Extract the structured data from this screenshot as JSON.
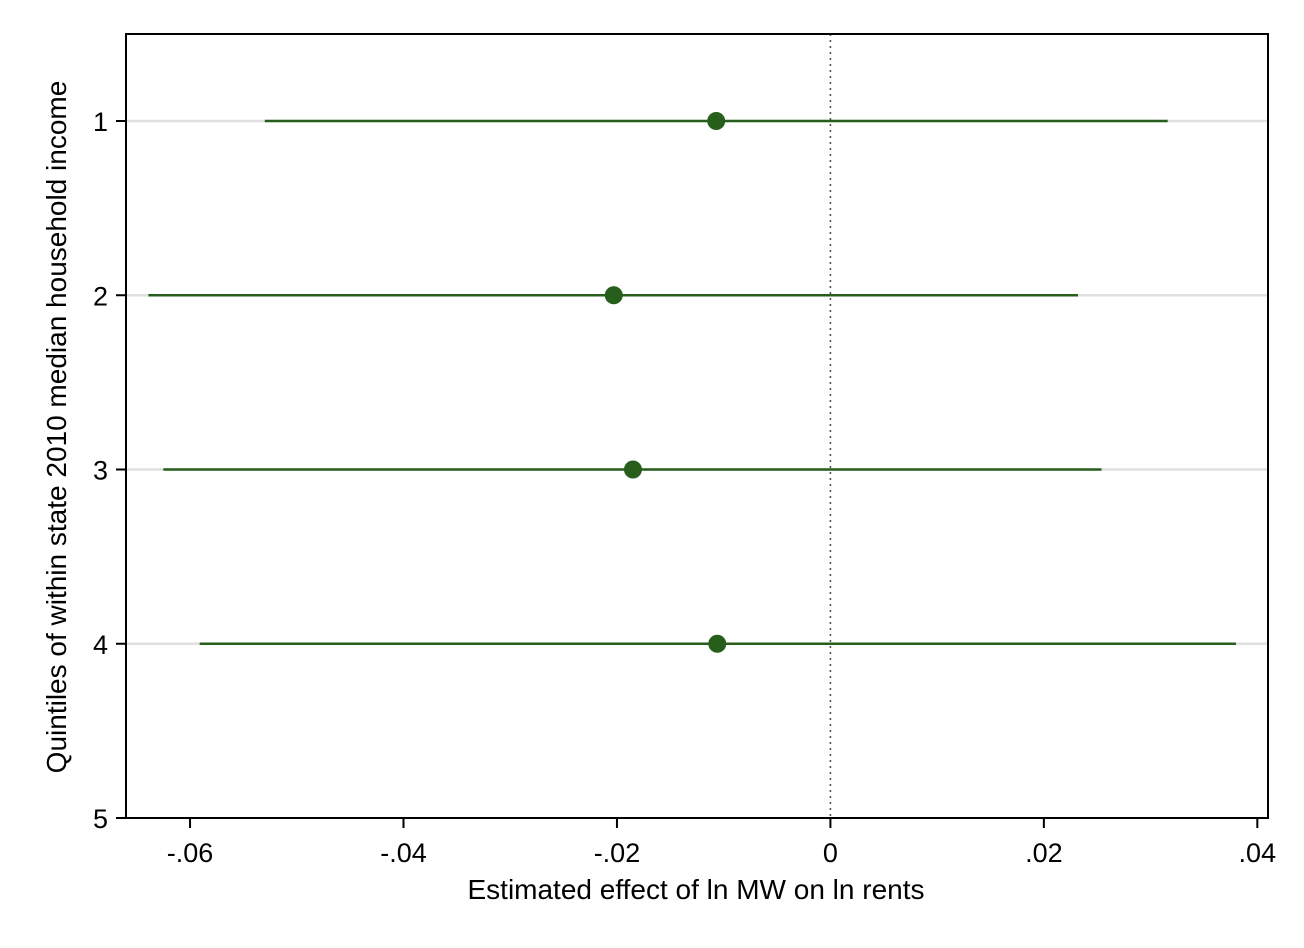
{
  "chart_data": {
    "type": "scatter",
    "orientation": "horizontal-coefficient-plot",
    "xlabel": "Estimated effect of ln MW on ln rents",
    "ylabel": "Quintiles of within state 2010 median household income",
    "xlim": [
      -0.066,
      0.041
    ],
    "ylim": [
      0.5,
      5
    ],
    "x_ticks": [
      -0.06,
      -0.04,
      -0.02,
      0,
      0.02,
      0.04
    ],
    "x_tick_labels": [
      "-.06",
      "-.04",
      "-.02",
      "0",
      ".02",
      ".04"
    ],
    "y_ticks": [
      1,
      2,
      3,
      4,
      5
    ],
    "y_tick_labels": [
      "1",
      "2",
      "3",
      "4",
      "5"
    ],
    "reference_line_x": 0,
    "grid": "horizontal",
    "series": [
      {
        "points": [
          {
            "y": 1,
            "estimate": -0.0107,
            "ci_low": -0.053,
            "ci_high": 0.0316
          },
          {
            "y": 2,
            "estimate": -0.0203,
            "ci_low": -0.0639,
            "ci_high": 0.0232
          },
          {
            "y": 3,
            "estimate": -0.0185,
            "ci_low": -0.0625,
            "ci_high": 0.0254
          },
          {
            "y": 4,
            "estimate": -0.0106,
            "ci_low": -0.0591,
            "ci_high": 0.038
          }
        ]
      }
    ],
    "colors": {
      "marker": "#275e1b",
      "ci": "#275e1b",
      "grid": "#e0e0e0",
      "axis": "#000000"
    }
  }
}
